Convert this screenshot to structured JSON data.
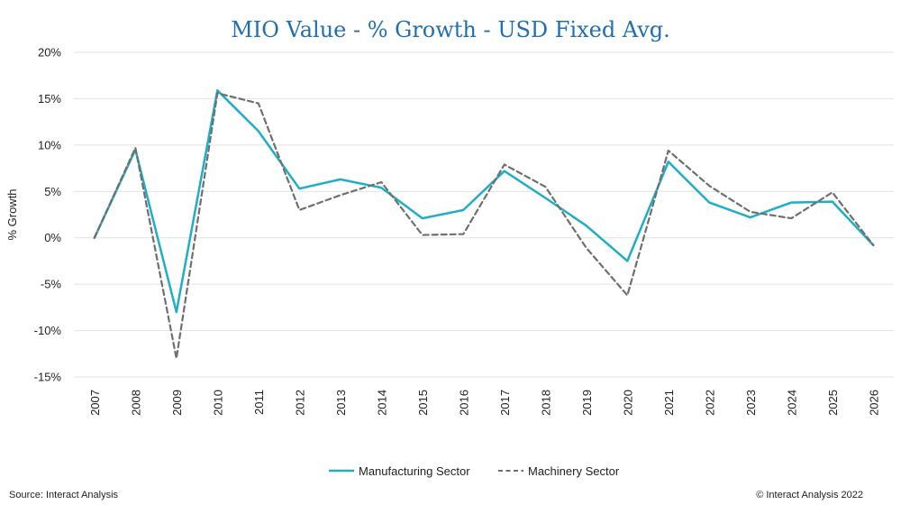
{
  "colors": {
    "manufacturing": "#1eaec6",
    "machinery": "#6f6f6f",
    "grid": "#e2e2e2",
    "title": "#1f6fb2",
    "text": "#222222"
  },
  "chart_data": {
    "type": "line",
    "title": "MIO Value - % Growth - USD Fixed Avg.",
    "xlabel": "",
    "ylabel": "% Growth",
    "ylim": [
      -15,
      20
    ],
    "y_ticks": [
      20,
      15,
      10,
      5,
      0,
      -5,
      -10,
      -15
    ],
    "y_tick_labels": [
      "20%",
      "15%",
      "10%",
      "5%",
      "0%",
      "-5%",
      "-10%",
      "-15%"
    ],
    "grid": true,
    "legend_position": "bottom-center",
    "categories": [
      "2007",
      "2008",
      "2009",
      "2010",
      "2011",
      "2012",
      "2013",
      "2014",
      "2015",
      "2016",
      "2017",
      "2018",
      "2019",
      "2020",
      "2021",
      "2022",
      "2023",
      "2024",
      "2025",
      "2026"
    ],
    "series": [
      {
        "name": "Manufacturing Sector",
        "style": "solid",
        "color": "#1eaec6",
        "values": [
          0.0,
          9.5,
          -8.0,
          15.9,
          11.5,
          5.3,
          6.3,
          5.4,
          2.1,
          3.0,
          7.2,
          4.3,
          1.3,
          -2.5,
          8.2,
          3.8,
          2.2,
          3.8,
          3.9,
          -0.8
        ]
      },
      {
        "name": "Machinery Sector",
        "style": "dashed",
        "color": "#6f6f6f",
        "values": [
          0.0,
          9.7,
          -13.0,
          15.6,
          14.5,
          3.0,
          4.6,
          6.0,
          0.3,
          0.4,
          7.9,
          5.5,
          -1.1,
          -6.2,
          9.4,
          5.6,
          2.8,
          2.1,
          4.9,
          -0.8
        ]
      }
    ]
  },
  "footer": {
    "source": "Source: Interact Analysis",
    "copyright": "© Interact Analysis 2022"
  }
}
